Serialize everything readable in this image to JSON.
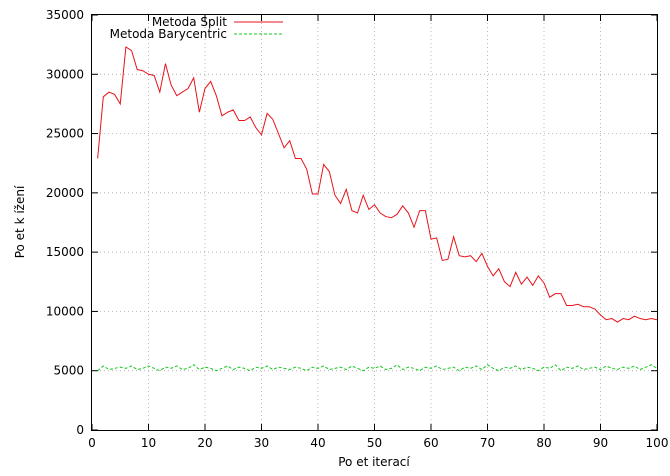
{
  "chart_data": {
    "type": "line",
    "title": "",
    "xlabel": "Po et iterací",
    "ylabel": "Po et k ížení",
    "xlim": [
      0,
      100
    ],
    "ylim": [
      0,
      35000
    ],
    "grid": true,
    "legend_position": "top-left",
    "xticks": [
      0,
      10,
      20,
      30,
      40,
      50,
      60,
      70,
      80,
      90,
      100
    ],
    "yticks": [
      0,
      5000,
      10000,
      15000,
      20000,
      25000,
      30000,
      35000
    ],
    "series": [
      {
        "name": "Metoda Split",
        "color": "#e8131b",
        "dash": "solid",
        "x": [
          1,
          2,
          3,
          4,
          5,
          6,
          7,
          8,
          9,
          10,
          11,
          12,
          13,
          14,
          15,
          16,
          17,
          18,
          19,
          20,
          21,
          22,
          23,
          24,
          25,
          26,
          27,
          28,
          29,
          30,
          31,
          32,
          33,
          34,
          35,
          36,
          37,
          38,
          39,
          40,
          41,
          42,
          43,
          44,
          45,
          46,
          47,
          48,
          49,
          50,
          51,
          52,
          53,
          54,
          55,
          56,
          57,
          58,
          59,
          60,
          61,
          62,
          63,
          64,
          65,
          66,
          67,
          68,
          69,
          70,
          71,
          72,
          73,
          74,
          75,
          76,
          77,
          78,
          79,
          80,
          81,
          82,
          83,
          84,
          85,
          86,
          87,
          88,
          89,
          90,
          91,
          92,
          93,
          94,
          95,
          96,
          97,
          98,
          99,
          100
        ],
        "values": [
          22900,
          28100,
          28500,
          28300,
          27500,
          32300,
          32000,
          30400,
          30300,
          30000,
          29900,
          28500,
          30900,
          29100,
          28200,
          28500,
          28800,
          29700,
          26800,
          28800,
          29400,
          28200,
          26500,
          26800,
          27000,
          26100,
          26100,
          26400,
          25500,
          24900,
          26700,
          26200,
          25000,
          23800,
          24400,
          22900,
          22900,
          22000,
          19900,
          19900,
          22400,
          21800,
          19800,
          19100,
          20300,
          18500,
          18300,
          19800,
          18600,
          19000,
          18300,
          18000,
          17900,
          18200,
          18900,
          18300,
          17100,
          18500,
          18500,
          16100,
          16200,
          14300,
          14400,
          16300,
          14700,
          14600,
          14700,
          14200,
          14900,
          13800,
          13000,
          13600,
          12500,
          12100,
          13300,
          12300,
          12900,
          12200,
          13000,
          12400,
          11200,
          11500,
          11500,
          10500,
          10500,
          10600,
          10400,
          10400,
          10200,
          9700,
          9300,
          9400,
          9100,
          9400,
          9300,
          9600,
          9400,
          9300,
          9400,
          9300
        ]
      },
      {
        "name": "Metoda Barycentric",
        "color": "#12c81b",
        "dash": "dashed",
        "x": [
          1,
          2,
          3,
          4,
          5,
          6,
          7,
          8,
          9,
          10,
          11,
          12,
          13,
          14,
          15,
          16,
          17,
          18,
          19,
          20,
          21,
          22,
          23,
          24,
          25,
          26,
          27,
          28,
          29,
          30,
          31,
          32,
          33,
          34,
          35,
          36,
          37,
          38,
          39,
          40,
          41,
          42,
          43,
          44,
          45,
          46,
          47,
          48,
          49,
          50,
          51,
          52,
          53,
          54,
          55,
          56,
          57,
          58,
          59,
          60,
          61,
          62,
          63,
          64,
          65,
          66,
          67,
          68,
          69,
          70,
          71,
          72,
          73,
          74,
          75,
          76,
          77,
          78,
          79,
          80,
          81,
          82,
          83,
          84,
          85,
          86,
          87,
          88,
          89,
          90,
          91,
          92,
          93,
          94,
          95,
          96,
          97,
          98,
          99,
          100
        ],
        "values": [
          5000,
          5400,
          5100,
          5200,
          5300,
          5200,
          5400,
          5100,
          5200,
          5400,
          5200,
          5000,
          5300,
          5200,
          5400,
          5100,
          5200,
          5500,
          5100,
          5300,
          5200,
          5000,
          5200,
          5400,
          5100,
          5300,
          5200,
          5000,
          5300,
          5200,
          5400,
          5100,
          5300,
          5200,
          5100,
          5300,
          5200,
          5000,
          5300,
          5200,
          5400,
          5100,
          5200,
          5300,
          5100,
          5400,
          5200,
          5000,
          5300,
          5200,
          5400,
          5100,
          5200,
          5500,
          5100,
          5300,
          5200,
          5000,
          5300,
          5200,
          5400,
          5100,
          5200,
          5300,
          5000,
          5300,
          5200,
          5400,
          5100,
          5500,
          5200,
          5000,
          5300,
          5200,
          5400,
          5100,
          5300,
          5200,
          5000,
          5300,
          5200,
          5500,
          5000,
          5300,
          5200,
          5400,
          5100,
          5200,
          5300,
          5100,
          5400,
          5200,
          5100,
          5300,
          5200,
          5400,
          5100,
          5300,
          5500,
          5200
        ]
      }
    ]
  }
}
